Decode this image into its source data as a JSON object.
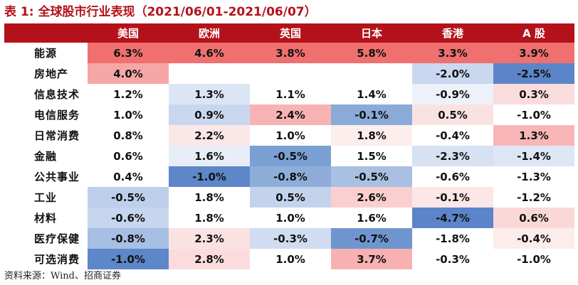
{
  "title": "表 1:  全球股市行业表现（2021/06/01-2021/06/07）",
  "source": "资料来源：Wind、招商证券",
  "columns": [
    "",
    "美国",
    "欧洲",
    "英国",
    "日本",
    "香港",
    "A 股"
  ],
  "rows": [
    {
      "label": "能源",
      "values": [
        "6.3%",
        "4.6%",
        "3.8%",
        "5.8%",
        "3.3%",
        "3.9%"
      ],
      "bg": [
        "#f07070",
        "#f07070",
        "#f07070",
        "#f07070",
        "#f07070",
        "#f07070"
      ]
    },
    {
      "label": "房地产",
      "values": [
        "4.0%",
        "",
        "",
        "",
        "-2.0%",
        "-2.5%"
      ],
      "bg": [
        "#f6a6a6",
        "#ffffff",
        "#ffffff",
        "#ffffff",
        "#c9d8ef",
        "#5b85c8"
      ]
    },
    {
      "label": "信息技术",
      "values": [
        "1.2%",
        "1.3%",
        "1.1%",
        "1.4%",
        "-0.9%",
        "0.3%"
      ],
      "bg": [
        "#ffffff",
        "#dbe5f4",
        "#ffffff",
        "#ffffff",
        "#edf2fa",
        "#fbdcdc"
      ]
    },
    {
      "label": "电信服务",
      "values": [
        "1.0%",
        "0.9%",
        "2.4%",
        "-0.1%",
        "0.5%",
        "-1.0%"
      ],
      "bg": [
        "#ffffff",
        "#c8d7ee",
        "#f7b3b3",
        "#8aaad8",
        "#fbe2e2",
        "#ffffff"
      ]
    },
    {
      "label": "日常消费",
      "values": [
        "0.8%",
        "2.2%",
        "1.0%",
        "1.8%",
        "-0.4%",
        "1.3%"
      ],
      "bg": [
        "#ffffff",
        "#fbe7e7",
        "#ffffff",
        "#fdeeee",
        "#ffffff",
        "#f8b6b6"
      ]
    },
    {
      "label": "金融",
      "values": [
        "0.6%",
        "1.6%",
        "-0.5%",
        "1.5%",
        "-2.3%",
        "-1.4%"
      ],
      "bg": [
        "#ffffff",
        "#e8eef8",
        "#7aa0d4",
        "#ffffff",
        "#d6e1f2",
        "#dde6f5"
      ]
    },
    {
      "label": "公共事业",
      "values": [
        "0.4%",
        "-1.0%",
        "-0.8%",
        "-0.5%",
        "-0.6%",
        "-1.3%"
      ],
      "bg": [
        "#ffffff",
        "#5d87c9",
        "#8eaed9",
        "#a9c0e3",
        "#ffffff",
        "#ffffff"
      ]
    },
    {
      "label": "工业",
      "values": [
        "-0.5%",
        "1.8%",
        "0.5%",
        "2.6%",
        "-0.1%",
        "-1.2%"
      ],
      "bg": [
        "#bdcfeb",
        "#ffffff",
        "#c3d3ec",
        "#f9cfcf",
        "#fce6e6",
        "#ffffff"
      ]
    },
    {
      "label": "材料",
      "values": [
        "-0.6%",
        "1.8%",
        "1.0%",
        "1.6%",
        "-4.7%",
        "0.6%"
      ],
      "bg": [
        "#c6d6ee",
        "#ffffff",
        "#ffffff",
        "#ffffff",
        "#5b85c8",
        "#fbd8d8"
      ]
    },
    {
      "label": "医疗保健",
      "values": [
        "-0.8%",
        "2.3%",
        "-0.3%",
        "-0.7%",
        "-1.8%",
        "-0.4%"
      ],
      "bg": [
        "#a7bfe2",
        "#fbe2e2",
        "#d0dcf0",
        "#6f95cf",
        "#ffffff",
        "#fdecec"
      ]
    },
    {
      "label": "可选消费",
      "values": [
        "-1.0%",
        "2.8%",
        "1.0%",
        "3.7%",
        "-0.3%",
        "-1.0%"
      ],
      "bg": [
        "#5d87c9",
        "#fbdcdc",
        "#ffffff",
        "#f8b1b1",
        "#ffffff",
        "#ffffff"
      ]
    }
  ]
}
